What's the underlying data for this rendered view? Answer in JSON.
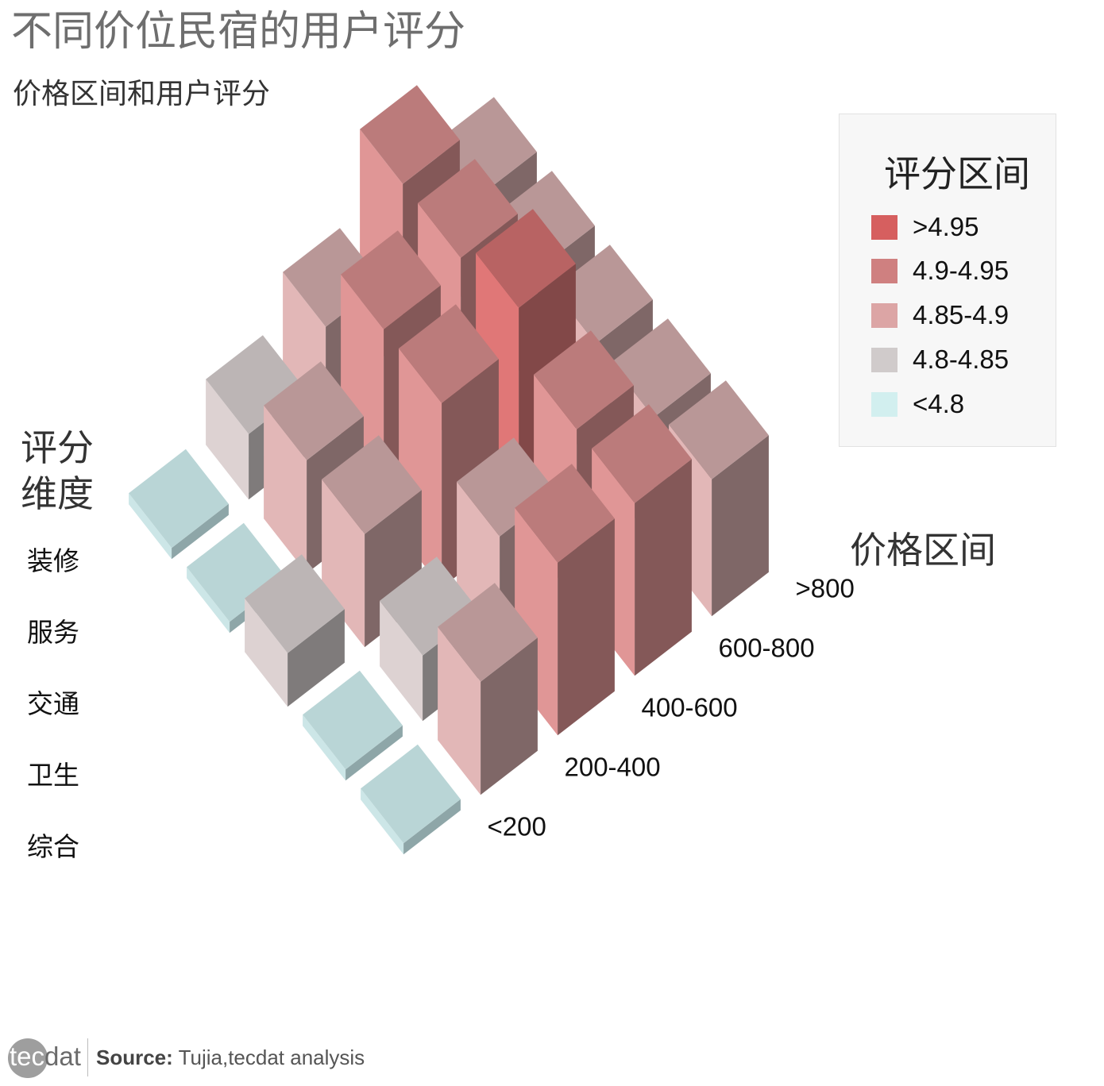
{
  "title": "不同价位民宿的用户评分",
  "subtitle": "价格区间和用户评分",
  "footer": {
    "logo": "tecdat",
    "source_label": "Source:",
    "source_text": "Tujia,tecdat analysis"
  },
  "chart_data": {
    "type": "bar3d",
    "x_axis": {
      "title": "价格区间",
      "categories": [
        "<200",
        "200-400",
        "400-600",
        "600-800",
        ">800"
      ]
    },
    "y_axis": {
      "title": "评分\n维度",
      "categories": [
        "综合",
        "卫生",
        "交通",
        "服务",
        "装修"
      ]
    },
    "legend": {
      "title": "评分区间",
      "placement": "right",
      "items": [
        {
          "label": ">4.95",
          "color": "#d65f5f"
        },
        {
          "label": "4.9-4.95",
          "color": "#cf8080"
        },
        {
          "label": "4.85-4.9",
          "color": "#dca5a5"
        },
        {
          "label": "4.8-4.85",
          "color": "#d0cbcb"
        },
        {
          "label": "<4.8",
          "color": "#d2efef"
        }
      ]
    },
    "bands": [
      "<4.8",
      "4.8-4.85",
      "4.85-4.9",
      "4.9-4.95",
      ">4.95"
    ],
    "cells": [
      {
        "price": "<200",
        "dim": "综合",
        "band": "<4.8",
        "value": 4.78
      },
      {
        "price": "<200",
        "dim": "卫生",
        "band": "<4.8",
        "value": 4.78
      },
      {
        "price": "<200",
        "dim": "交通",
        "band": "4.8-4.85",
        "value": 4.82
      },
      {
        "price": "<200",
        "dim": "服务",
        "band": "<4.8",
        "value": 4.78
      },
      {
        "price": "<200",
        "dim": "装修",
        "band": "<4.8",
        "value": 4.78
      },
      {
        "price": "200-400",
        "dim": "综合",
        "band": "4.85-4.9",
        "value": 4.87
      },
      {
        "price": "200-400",
        "dim": "卫生",
        "band": "4.8-4.85",
        "value": 4.83
      },
      {
        "price": "200-400",
        "dim": "交通",
        "band": "4.85-4.9",
        "value": 4.87
      },
      {
        "price": "200-400",
        "dim": "服务",
        "band": "4.85-4.9",
        "value": 4.87
      },
      {
        "price": "200-400",
        "dim": "装修",
        "band": "4.8-4.85",
        "value": 4.83
      },
      {
        "price": "400-600",
        "dim": "综合",
        "band": "4.9-4.95",
        "value": 4.92
      },
      {
        "price": "400-600",
        "dim": "卫生",
        "band": "4.85-4.9",
        "value": 4.88
      },
      {
        "price": "400-600",
        "dim": "交通",
        "band": "4.9-4.95",
        "value": 4.93
      },
      {
        "price": "400-600",
        "dim": "服务",
        "band": "4.9-4.95",
        "value": 4.93
      },
      {
        "price": "400-600",
        "dim": "装修",
        "band": "4.85-4.9",
        "value": 4.87
      },
      {
        "price": "600-800",
        "dim": "综合",
        "band": "4.9-4.95",
        "value": 4.92
      },
      {
        "price": "600-800",
        "dim": "卫生",
        "band": "4.9-4.95",
        "value": 4.92
      },
      {
        "price": "600-800",
        "dim": "交通",
        "band": ">4.95",
        "value": 4.96
      },
      {
        "price": "600-800",
        "dim": "服务",
        "band": "4.9-4.95",
        "value": 4.94
      },
      {
        "price": "600-800",
        "dim": "装修",
        "band": "4.9-4.95",
        "value": 4.94
      },
      {
        "price": ">800",
        "dim": "综合",
        "band": "4.85-4.9",
        "value": 4.89
      },
      {
        "price": ">800",
        "dim": "卫生",
        "band": "4.85-4.9",
        "value": 4.88
      },
      {
        "price": ">800",
        "dim": "交通",
        "band": "4.85-4.9",
        "value": 4.88
      },
      {
        "price": ">800",
        "dim": "服务",
        "band": "4.85-4.9",
        "value": 4.88
      },
      {
        "price": ">800",
        "dim": "装修",
        "band": "4.85-4.9",
        "value": 4.88
      }
    ]
  }
}
